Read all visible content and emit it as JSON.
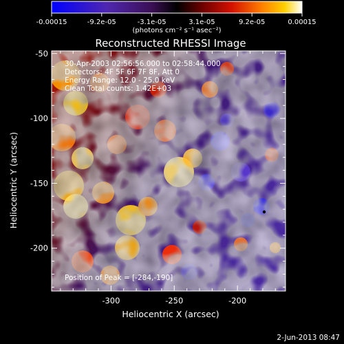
{
  "colorbar": {
    "tick_labels": [
      "-0.00015",
      "-9.2e-05",
      "-3.1e-05",
      "3.1e-05",
      "9.2e-05",
      "0.00015"
    ],
    "units_label": "(photons cm⁻² s⁻¹ asec⁻²)",
    "colors": [
      "#0000ff",
      "#4f27b0",
      "#3b0f55",
      "#000000",
      "#6b0000",
      "#d41100",
      "#ff8000",
      "#ffd000",
      "#ffffff"
    ]
  },
  "plot": {
    "title": "Reconstructed RHESSI Image",
    "xlabel": "Heliocentric X (arcsec)",
    "ylabel": "Heliocentric Y (arcsec)",
    "x_ticks": [
      "-300",
      "-250",
      "-200"
    ],
    "y_ticks": [
      "-50",
      "-100",
      "-150",
      "-200"
    ],
    "xlim": [
      -347,
      -162
    ],
    "ylim": [
      -233,
      -48
    ]
  },
  "annotations": {
    "time_range": "30-Apr-2003 02:56:56.000 to 02:58:44.000",
    "detectors": "Detectors: 4F 5F 6F 7F 8F, Att 0",
    "energy": "Energy Range: 12.0 - 25.0 keV",
    "method": "Clean     Total counts: 1.42E+03",
    "peak": "Position of Peak = [-284,-190]"
  },
  "footer": {
    "date": "2-Jun-2013 08:47"
  }
}
